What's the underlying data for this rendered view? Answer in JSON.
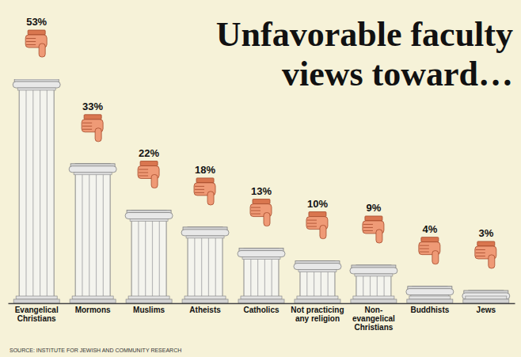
{
  "chart_data": {
    "type": "bar",
    "title": "Unfavorable faculty views toward…",
    "categories": [
      "Evangelical Christians",
      "Mormons",
      "Muslims",
      "Atheists",
      "Catholics",
      "Not practicing any religion",
      "Non-evangelical Christians",
      "Buddhists",
      "Jews"
    ],
    "values": [
      53,
      33,
      22,
      18,
      13,
      10,
      9,
      4,
      3
    ],
    "value_labels": [
      "53%",
      "33%",
      "22%",
      "18%",
      "13%",
      "10%",
      "9%",
      "4%",
      "3%"
    ],
    "data_labels": true,
    "color": "#f4f4ee",
    "ylim": [
      0,
      53
    ],
    "tick_labels": "x",
    "source": "SOURCE: INSTITUTE FOR JEWISH AND COMMUNITY RESEARCH"
  }
}
